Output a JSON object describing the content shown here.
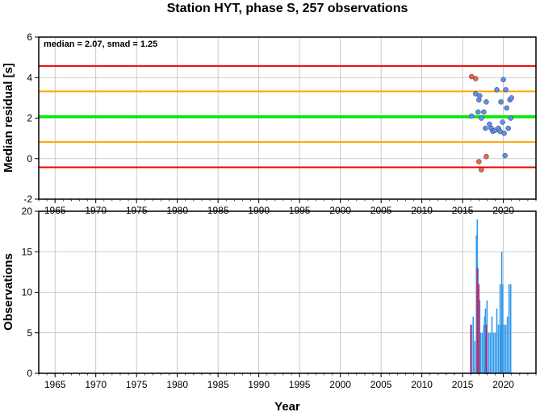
{
  "title": "Station HYT, phase S, 257 observations",
  "xlabel": "Year",
  "chart_data": [
    {
      "type": "scatter",
      "ylabel": "Median residual [s]",
      "annotation": "median = 2.07, smad = 1.25",
      "xlim": [
        1963,
        2024
      ],
      "ylim": [
        -2,
        6
      ],
      "x_ticks": [
        "1965",
        "1970",
        "1975",
        "1980",
        "1985",
        "1990",
        "1995",
        "2000",
        "2005",
        "2010",
        "2015",
        "2020"
      ],
      "y_ticks": [
        "-2",
        "0",
        "2",
        "4",
        "6"
      ],
      "grid": true,
      "reference_lines": [
        {
          "name": "median",
          "value": 2.07,
          "color": "#00ee00"
        },
        {
          "name": "+2 smad",
          "value": 3.32,
          "color": "#ffa500"
        },
        {
          "name": "-2 smad",
          "value": 0.82,
          "color": "#ffa500"
        },
        {
          "name": "+4 smad",
          "value": 4.57,
          "color": "#ee0000"
        },
        {
          "name": "-4 smad",
          "value": -0.43,
          "color": "#ee0000"
        }
      ],
      "series": [
        {
          "name": "",
          "color": "#5b8ff0",
          "points": [
            [
              2016.1,
              2.1
            ],
            [
              2016.6,
              3.2
            ],
            [
              2016.9,
              2.3
            ],
            [
              2017.0,
              2.9
            ],
            [
              2017.1,
              3.1
            ],
            [
              2017.3,
              2.0
            ],
            [
              2017.6,
              2.3
            ],
            [
              2017.8,
              1.5
            ],
            [
              2017.9,
              2.8
            ],
            [
              2018.3,
              1.7
            ],
            [
              2018.5,
              1.5
            ],
            [
              2018.7,
              1.35
            ],
            [
              2019.0,
              1.4
            ],
            [
              2019.2,
              3.4
            ],
            [
              2019.4,
              1.5
            ],
            [
              2019.6,
              1.35
            ],
            [
              2019.7,
              2.8
            ],
            [
              2019.9,
              1.8
            ],
            [
              2020.0,
              3.9
            ],
            [
              2020.1,
              1.25
            ],
            [
              2020.2,
              0.15
            ],
            [
              2020.3,
              3.4
            ],
            [
              2020.4,
              2.5
            ],
            [
              2020.6,
              1.5
            ],
            [
              2020.8,
              2.9
            ],
            [
              2020.9,
              2.0
            ],
            [
              2021.0,
              3.0
            ]
          ]
        },
        {
          "name": "",
          "color": "#f06050",
          "points": [
            [
              2016.1,
              4.05
            ],
            [
              2016.6,
              3.95
            ],
            [
              2017.0,
              -0.15
            ],
            [
              2017.3,
              -0.55
            ],
            [
              2017.9,
              0.1
            ]
          ]
        }
      ]
    },
    {
      "type": "bar",
      "ylabel": "Observations",
      "xlim": [
        1963,
        2024
      ],
      "ylim": [
        0,
        20
      ],
      "x_ticks": [
        "1965",
        "1970",
        "1975",
        "1980",
        "1985",
        "1990",
        "1995",
        "2000",
        "2005",
        "2010",
        "2015",
        "2020"
      ],
      "y_ticks": [
        "0",
        "5",
        "10",
        "15",
        "20"
      ],
      "grid": true,
      "series": [
        {
          "name": "",
          "color": "#3399ee",
          "bars": [
            [
              2016.1,
              6
            ],
            [
              2016.3,
              7
            ],
            [
              2016.5,
              4
            ],
            [
              2016.7,
              17
            ],
            [
              2016.8,
              19
            ],
            [
              2016.9,
              13
            ],
            [
              2017.0,
              8
            ],
            [
              2017.1,
              9
            ],
            [
              2017.2,
              5
            ],
            [
              2017.4,
              5
            ],
            [
              2017.6,
              6
            ],
            [
              2017.7,
              7
            ],
            [
              2017.8,
              8
            ],
            [
              2018.0,
              9
            ],
            [
              2018.2,
              5
            ],
            [
              2018.4,
              5
            ],
            [
              2018.6,
              7
            ],
            [
              2018.8,
              5
            ],
            [
              2019.0,
              5
            ],
            [
              2019.2,
              8
            ],
            [
              2019.4,
              6
            ],
            [
              2019.6,
              11
            ],
            [
              2019.7,
              6
            ],
            [
              2019.8,
              15
            ],
            [
              2019.9,
              11
            ],
            [
              2020.1,
              6
            ],
            [
              2020.3,
              6
            ],
            [
              2020.5,
              7
            ],
            [
              2020.7,
              11
            ],
            [
              2020.9,
              11
            ]
          ]
        },
        {
          "name": "",
          "color": "#cc2255",
          "bars": [
            [
              2016.0,
              6
            ],
            [
              2016.8,
              13
            ],
            [
              2017.0,
              11
            ],
            [
              2017.9,
              6
            ]
          ]
        }
      ]
    }
  ]
}
